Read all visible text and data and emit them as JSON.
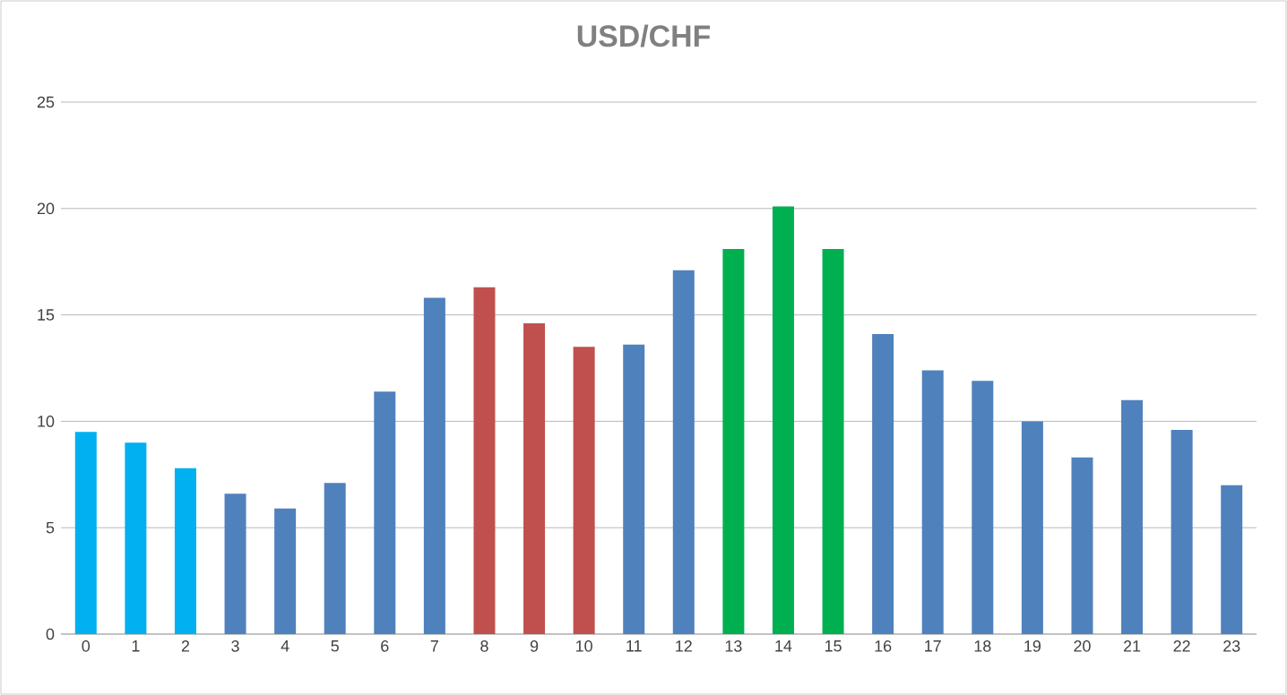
{
  "chart_data": {
    "type": "bar",
    "title": "USD/CHF",
    "categories": [
      "0",
      "1",
      "2",
      "3",
      "4",
      "5",
      "6",
      "7",
      "8",
      "9",
      "10",
      "11",
      "12",
      "13",
      "14",
      "15",
      "16",
      "17",
      "18",
      "19",
      "20",
      "21",
      "22",
      "23"
    ],
    "values": [
      9.5,
      9.0,
      7.8,
      6.6,
      5.9,
      7.1,
      11.4,
      15.8,
      16.3,
      14.6,
      13.5,
      13.6,
      17.1,
      18.1,
      20.1,
      18.1,
      14.1,
      12.4,
      11.9,
      10.0,
      8.3,
      11.0,
      9.6,
      7.0
    ],
    "colors": [
      "#00b0f0",
      "#00b0f0",
      "#00b0f0",
      "#4f81bd",
      "#4f81bd",
      "#4f81bd",
      "#4f81bd",
      "#4f81bd",
      "#c0504d",
      "#c0504d",
      "#c0504d",
      "#4f81bd",
      "#4f81bd",
      "#00b050",
      "#00b050",
      "#00b050",
      "#4f81bd",
      "#4f81bd",
      "#4f81bd",
      "#4f81bd",
      "#4f81bd",
      "#4f81bd",
      "#4f81bd",
      "#4f81bd"
    ],
    "ylim": [
      0,
      25
    ],
    "yticks": [
      0,
      5,
      10,
      15,
      20,
      25
    ],
    "grid": "y"
  }
}
